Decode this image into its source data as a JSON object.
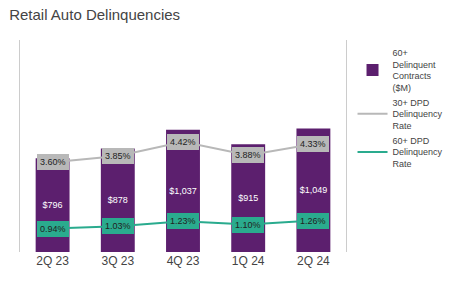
{
  "chart_data": {
    "type": "bar",
    "title": "Retail Auto Delinquencies",
    "categories": [
      "2Q 23",
      "3Q 23",
      "4Q 23",
      "1Q 24",
      "2Q 24"
    ],
    "series": [
      {
        "name": "60+\nDelinquent\nContracts\n($M)",
        "type": "bar",
        "color": "#5c1f6e",
        "values": [
          796,
          878,
          1037,
          915,
          1049
        ],
        "value_labels": [
          "$796",
          "$878",
          "$1,037",
          "$915",
          "$1,049"
        ]
      },
      {
        "name": "30+ DPD\nDelinquency\nRate",
        "type": "line",
        "axis": "y2",
        "color": "#b8b8b8",
        "values": [
          3.6,
          3.85,
          4.42,
          3.88,
          4.33
        ],
        "value_labels": [
          "3.60%",
          "3.85%",
          "4.42%",
          "3.88%",
          "4.33%"
        ]
      },
      {
        "name": "60+ DPD\nDelinquency\nRate",
        "type": "line",
        "axis": "y2",
        "color": "#2aab8e",
        "values": [
          0.94,
          1.03,
          1.23,
          1.1,
          1.26
        ],
        "value_labels": [
          "0.94%",
          "1.03%",
          "1.23%",
          "1.10%",
          "1.26%"
        ]
      }
    ],
    "ylim": [
      0,
      1800
    ],
    "yticks": [],
    "y2lim": [
      0,
      8.5
    ],
    "y2ticks": [],
    "grid": false,
    "legend": "right",
    "data_labels": true,
    "tick_labels": "x"
  }
}
